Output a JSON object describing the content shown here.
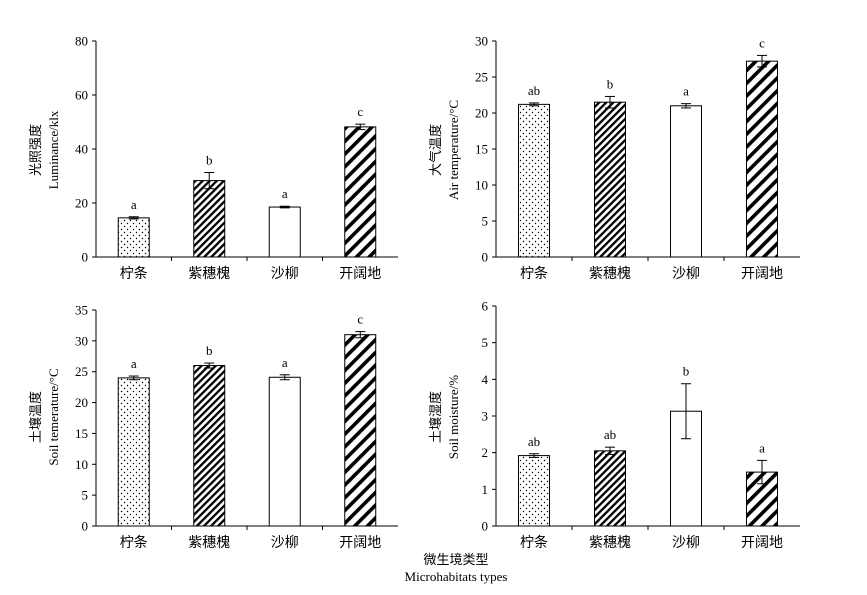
{
  "figure": {
    "xtitle_cn": "微生境类型",
    "xtitle_en": "Microhabitats types"
  },
  "chart_data": [
    {
      "type": "bar",
      "ylabel_cn": "光照强度",
      "ylabel_en": "Luminance/klx",
      "categories": [
        "柠条",
        "紫穗槐",
        "沙柳",
        "开阔地"
      ],
      "ylim": [
        0,
        80
      ],
      "yticks": [
        0,
        20,
        40,
        60,
        80
      ],
      "values": [
        14.5,
        28.3,
        18.5,
        48.2
      ],
      "errors": [
        0.4,
        3.0,
        0.3,
        1.0
      ],
      "significance": [
        "a",
        "b",
        "a",
        "c"
      ],
      "patterns": [
        "dots",
        "hatch-dense",
        "plain",
        "hatch-wide"
      ]
    },
    {
      "type": "bar",
      "ylabel_cn": "大气温度",
      "ylabel_en": "Air temperature/°C",
      "categories": [
        "柠条",
        "紫穗槐",
        "沙柳",
        "开阔地"
      ],
      "ylim": [
        0,
        30
      ],
      "yticks": [
        0,
        5,
        10,
        15,
        20,
        25,
        30
      ],
      "values": [
        21.2,
        21.5,
        21.0,
        27.2
      ],
      "errors": [
        0.2,
        0.8,
        0.3,
        0.8
      ],
      "significance": [
        "ab",
        "b",
        "a",
        "c"
      ],
      "patterns": [
        "dots",
        "hatch-dense",
        "plain",
        "hatch-wide"
      ]
    },
    {
      "type": "bar",
      "ylabel_cn": "土壤温度",
      "ylabel_en": "Soil temerature/°C",
      "categories": [
        "柠条",
        "紫穗槐",
        "沙柳",
        "开阔地"
      ],
      "ylim": [
        0,
        35
      ],
      "yticks": [
        0,
        5,
        10,
        15,
        20,
        25,
        30,
        35
      ],
      "values": [
        24.0,
        26.0,
        24.1,
        31.0
      ],
      "errors": [
        0.3,
        0.4,
        0.4,
        0.5
      ],
      "significance": [
        "a",
        "b",
        "a",
        "c"
      ],
      "patterns": [
        "dots",
        "hatch-dense",
        "plain",
        "hatch-wide"
      ]
    },
    {
      "type": "bar",
      "ylabel_cn": "土壤湿度",
      "ylabel_en": "Soil moisture/%",
      "categories": [
        "柠条",
        "紫穗槐",
        "沙柳",
        "开阔地"
      ],
      "ylim": [
        0,
        6
      ],
      "yticks": [
        0,
        1,
        2,
        3,
        4,
        5,
        6
      ],
      "values": [
        1.92,
        2.05,
        3.13,
        1.47
      ],
      "errors": [
        0.05,
        0.1,
        0.75,
        0.32
      ],
      "significance": [
        "ab",
        "ab",
        "b",
        "a"
      ],
      "patterns": [
        "dots",
        "hatch-dense",
        "plain",
        "hatch-wide"
      ]
    }
  ]
}
